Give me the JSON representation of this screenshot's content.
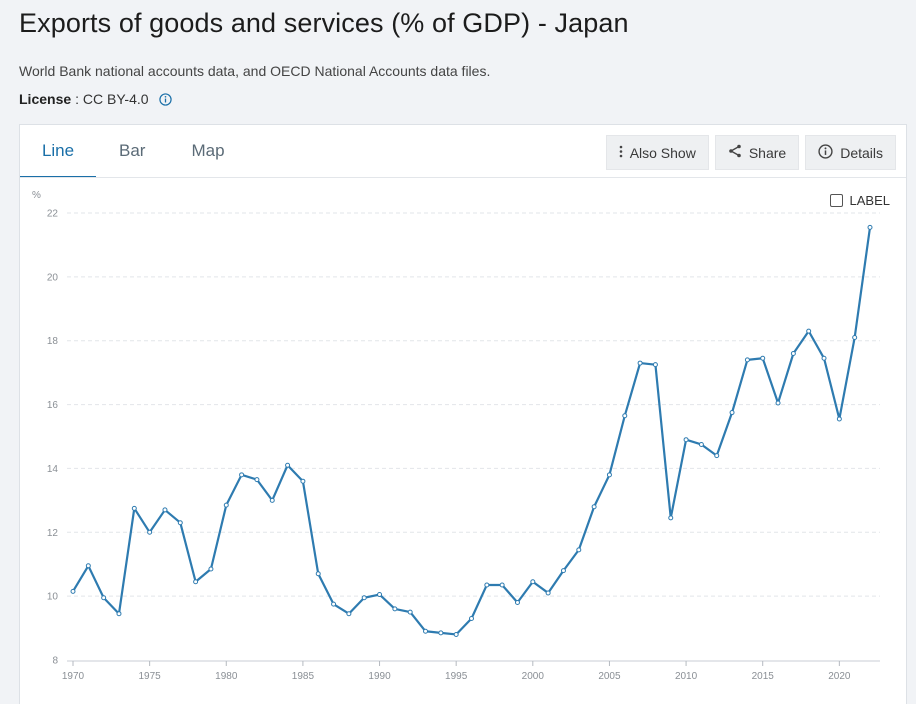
{
  "page": {
    "title": "Exports of goods and services (% of GDP) - Japan",
    "source": "World Bank national accounts data, and OECD National Accounts data files.",
    "license_key": "License",
    "license_value": ": CC BY-4.0"
  },
  "tabs": [
    {
      "label": "Line",
      "active": true
    },
    {
      "label": "Bar",
      "active": false
    },
    {
      "label": "Map",
      "active": false
    }
  ],
  "toolbar": {
    "also_show": "Also Show",
    "share": "Share",
    "details": "Details"
  },
  "label_toggle": "LABEL",
  "colors": {
    "line": "#2e7bb0",
    "grid": "#e2e5e9",
    "axis_text": "#8a8f95",
    "accent": "#1a6fa8"
  },
  "chart_data": {
    "type": "line",
    "title": "Exports of goods and services (% of GDP) - Japan",
    "ylabel": "%",
    "xlabel": "",
    "ylim": [
      8,
      22
    ],
    "yticks": [
      8,
      10,
      12,
      14,
      16,
      18,
      20,
      22
    ],
    "xlim": [
      1970,
      2022
    ],
    "xticks": [
      1970,
      1975,
      1980,
      1985,
      1990,
      1995,
      2000,
      2005,
      2010,
      2015,
      2020
    ],
    "grid": true,
    "series": [
      {
        "name": "Japan",
        "x": [
          1970,
          1971,
          1972,
          1973,
          1974,
          1975,
          1976,
          1977,
          1978,
          1979,
          1980,
          1981,
          1982,
          1983,
          1984,
          1985,
          1986,
          1987,
          1988,
          1989,
          1990,
          1991,
          1992,
          1993,
          1994,
          1995,
          1996,
          1997,
          1998,
          1999,
          2000,
          2001,
          2002,
          2003,
          2004,
          2005,
          2006,
          2007,
          2008,
          2009,
          2010,
          2011,
          2012,
          2013,
          2014,
          2015,
          2016,
          2017,
          2018,
          2019,
          2020,
          2021,
          2022
        ],
        "values": [
          10.15,
          10.95,
          9.95,
          9.45,
          12.75,
          12.0,
          12.7,
          12.3,
          10.45,
          10.85,
          12.85,
          13.8,
          13.65,
          13.0,
          14.1,
          13.6,
          10.7,
          9.75,
          9.45,
          9.95,
          10.05,
          9.6,
          9.5,
          8.9,
          8.85,
          8.8,
          9.3,
          10.35,
          10.35,
          9.8,
          10.45,
          10.1,
          10.8,
          11.45,
          12.8,
          13.8,
          15.65,
          17.3,
          17.25,
          12.45,
          14.9,
          14.75,
          14.4,
          15.75,
          17.4,
          17.45,
          16.05,
          17.6,
          18.3,
          17.45,
          15.55,
          18.1,
          21.55
        ]
      }
    ]
  }
}
